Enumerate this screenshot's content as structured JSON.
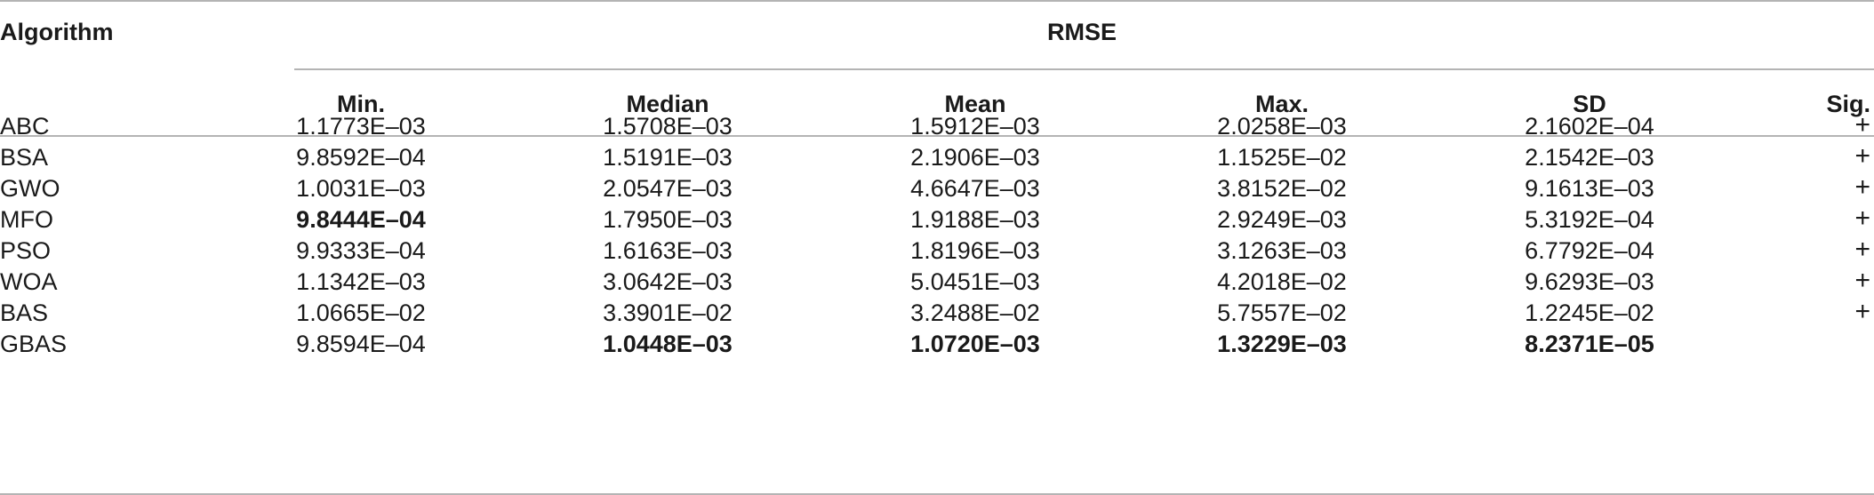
{
  "table": {
    "header": {
      "algorithm": "Algorithm",
      "group": "RMSE",
      "columns": [
        "Min.",
        "Median",
        "Mean",
        "Max.",
        "SD",
        "Sig."
      ]
    },
    "rows": [
      {
        "name": "ABC",
        "values": [
          "1.1773E–03",
          "1.5708E–03",
          "1.5912E–03",
          "2.0258E–03",
          "2.1602E–04"
        ],
        "sig": "+",
        "bold": []
      },
      {
        "name": "BSA",
        "values": [
          "9.8592E–04",
          "1.5191E–03",
          "2.1906E–03",
          "1.1525E–02",
          "2.1542E–03"
        ],
        "sig": "+",
        "bold": []
      },
      {
        "name": "GWO",
        "values": [
          "1.0031E–03",
          "2.0547E–03",
          "4.6647E–03",
          "3.8152E–02",
          "9.1613E–03"
        ],
        "sig": "+",
        "bold": []
      },
      {
        "name": "MFO",
        "values": [
          "9.8444E–04",
          "1.7950E–03",
          "1.9188E–03",
          "2.9249E–03",
          "5.3192E–04"
        ],
        "sig": "+",
        "bold": [
          0
        ]
      },
      {
        "name": "PSO",
        "values": [
          "9.9333E–04",
          "1.6163E–03",
          "1.8196E–03",
          "3.1263E–03",
          "6.7792E–04"
        ],
        "sig": "+",
        "bold": []
      },
      {
        "name": "WOA",
        "values": [
          "1.1342E–03",
          "3.0642E–03",
          "5.0451E–03",
          "4.2018E–02",
          "9.6293E–03"
        ],
        "sig": "+",
        "bold": []
      },
      {
        "name": "BAS",
        "values": [
          "1.0665E–02",
          "3.3901E–02",
          "3.2488E–02",
          "5.7557E–02",
          "1.2245E–02"
        ],
        "sig": "+",
        "bold": []
      },
      {
        "name": "GBAS",
        "values": [
          "9.8594E–04",
          "1.0448E–03",
          "1.0720E–03",
          "1.3229E–03",
          "8.2371E–05"
        ],
        "sig": "",
        "bold": [
          1,
          2,
          3,
          4
        ]
      }
    ]
  }
}
